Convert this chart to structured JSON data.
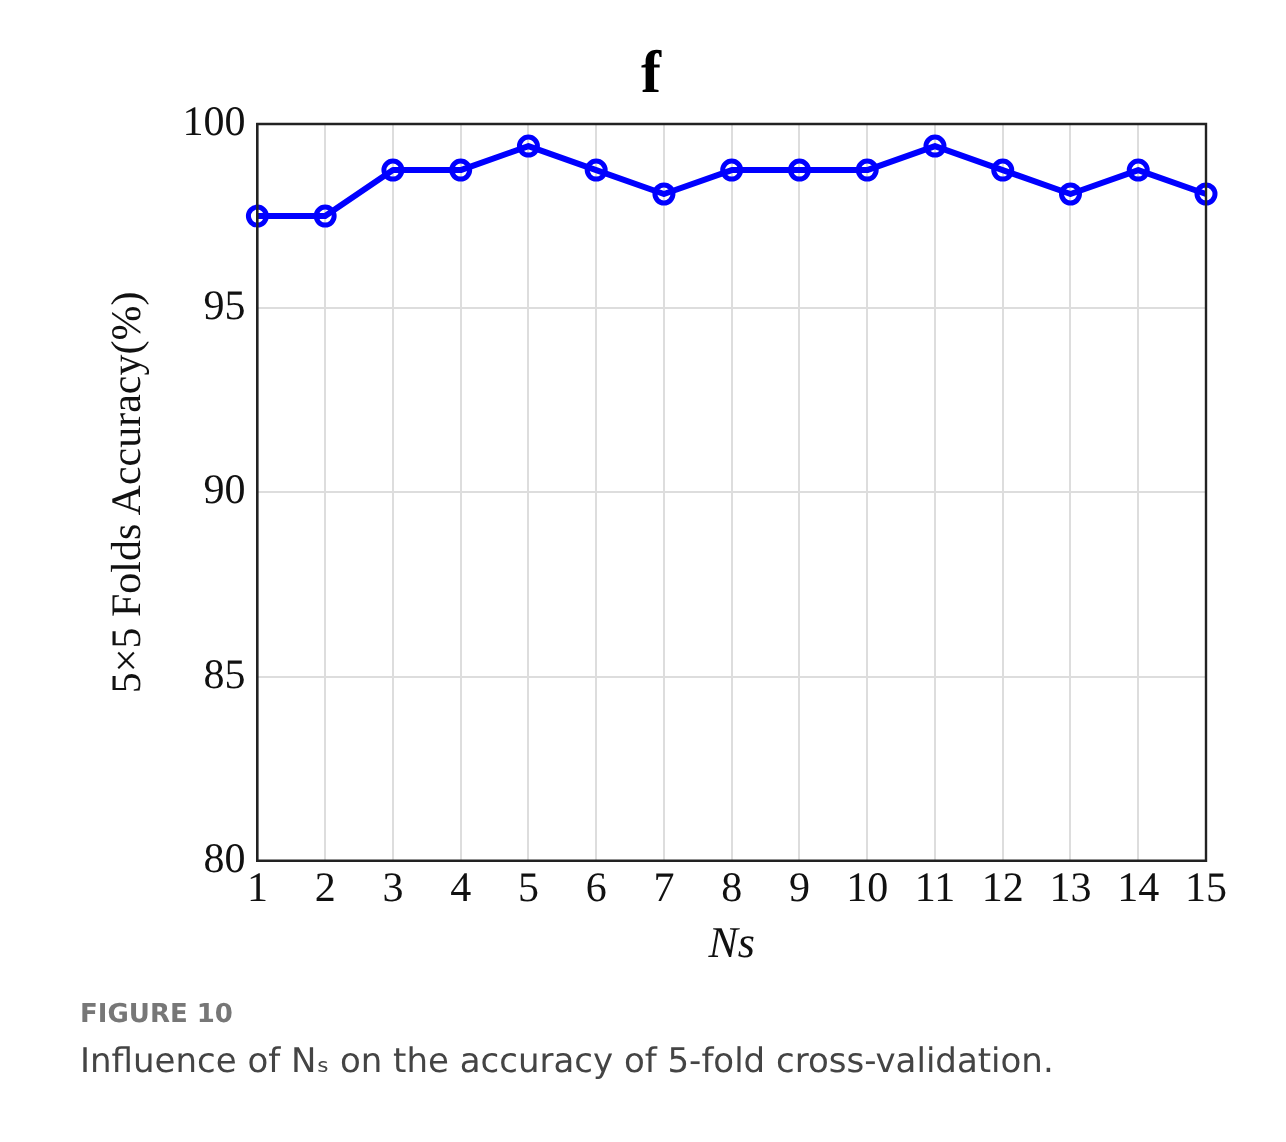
{
  "chart_data": {
    "type": "line",
    "title": "f",
    "xlabel": "Ns",
    "ylabel": "5×5 Folds Accuracy(%)",
    "x": [
      1,
      2,
      3,
      4,
      5,
      6,
      7,
      8,
      9,
      10,
      11,
      12,
      13,
      14,
      15
    ],
    "series": [
      {
        "color": "#0000ff",
        "values": [
          97.5,
          97.5,
          98.75,
          98.75,
          99.4,
          98.75,
          98.1,
          98.75,
          98.75,
          98.75,
          99.4,
          98.75,
          98.1,
          98.75,
          98.1
        ]
      }
    ],
    "xlim": [
      1,
      15
    ],
    "xticks": [
      1,
      2,
      3,
      4,
      5,
      6,
      7,
      8,
      9,
      10,
      11,
      12,
      13,
      14,
      15
    ],
    "ylim": [
      80,
      100
    ],
    "yticks": [
      80,
      85,
      90,
      95,
      100
    ],
    "grid": true,
    "legend": false,
    "marker": "circle",
    "line_style": "solid",
    "annotations": [
      "FIGURE 10",
      "Influence of Nₛ on the accuracy of 5-fold cross-validation."
    ]
  }
}
